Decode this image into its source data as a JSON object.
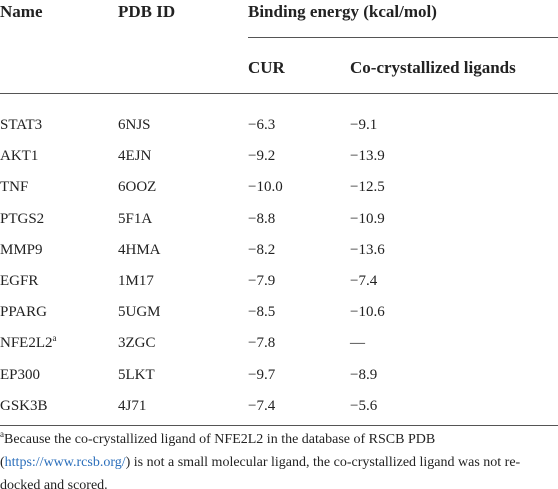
{
  "table": {
    "header": {
      "name": "Name",
      "pdb_id": "PDB ID",
      "binding_energy": "Binding energy (kcal/mol)",
      "cur": "CUR",
      "ligands": "Co-crystallized ligands"
    },
    "rows": [
      [
        "STAT3",
        "6NJS",
        "−6.3",
        "−9.1"
      ],
      [
        "AKT1",
        "4EJN",
        "−9.2",
        "−13.9"
      ],
      [
        "TNF",
        "6OOZ",
        "−10.0",
        "−12.5"
      ],
      [
        "PTGS2",
        "5F1A",
        "−8.8",
        "−10.9"
      ],
      [
        "MMP9",
        "4HMA",
        "−8.2",
        "−13.6"
      ],
      [
        "EGFR",
        "1M17",
        "−7.9",
        "−7.4"
      ],
      [
        "PPARG",
        "5UGM",
        "−8.5",
        "−10.6"
      ],
      [
        "NFE2L2",
        "3ZGC",
        "−7.8",
        "—"
      ],
      [
        "EP300",
        "5LKT",
        "−9.7",
        "−8.9"
      ],
      [
        "GSK3B",
        "4J71",
        "−7.4",
        "−5.6"
      ]
    ],
    "row_markers": {
      "7": "a"
    },
    "footnote": {
      "marker": "a",
      "text_before": "Because the co-crystallized ligand of NFE2L2 in the database of RSCB PDB (",
      "link": "https://www.rcsb.org/",
      "text_after": ") is not a small molecular ligand, the co-crystallized ligand was not re-docked and scored."
    }
  }
}
